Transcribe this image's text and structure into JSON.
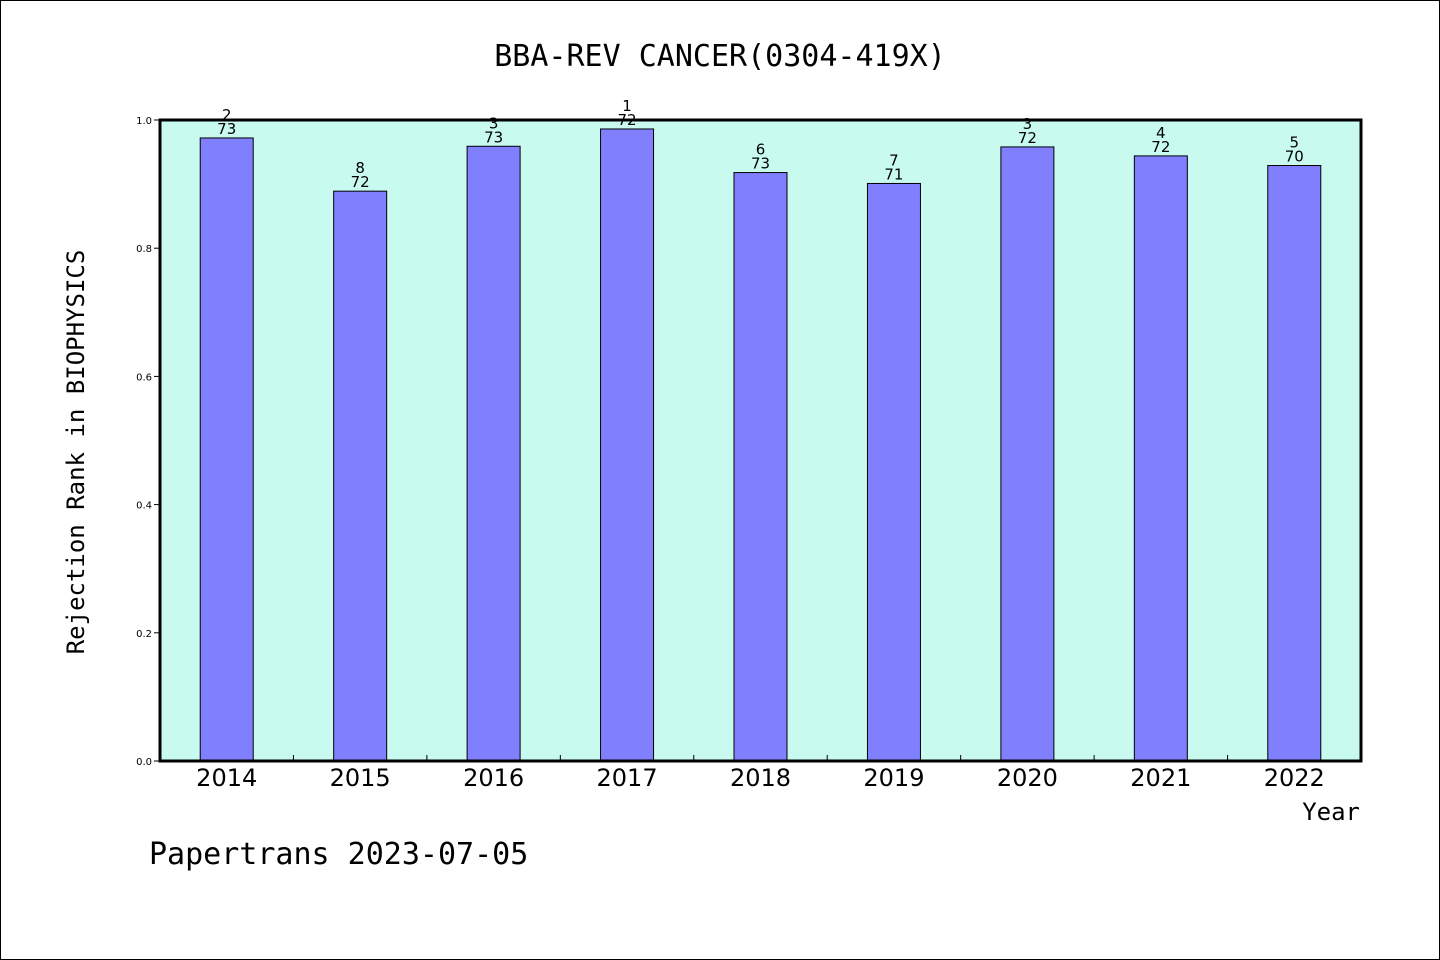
{
  "chart_data": {
    "type": "bar",
    "title": "BBA-REV CANCER(0304-419X)",
    "xlabel": "Year",
    "ylabel": "Rejection Rank in BIOPHYSICS",
    "categories": [
      "2014",
      "2015",
      "2016",
      "2017",
      "2018",
      "2019",
      "2020",
      "2021",
      "2022"
    ],
    "values": [
      0.972,
      0.889,
      0.959,
      0.986,
      0.918,
      0.901,
      0.958,
      0.944,
      0.929
    ],
    "rank_labels": [
      "2",
      "8",
      "3",
      "1",
      "6",
      "7",
      "3",
      "4",
      "5"
    ],
    "total_labels": [
      "73",
      "72",
      "73",
      "72",
      "73",
      "71",
      "72",
      "72",
      "70"
    ],
    "ylim": [
      0,
      1.0
    ],
    "yticks": [
      "0.0",
      "0.2",
      "0.4",
      "0.6",
      "0.8",
      "1.0"
    ],
    "grid": false,
    "colors": {
      "bar": "#8080ff",
      "plot_bg": "#c8faf0",
      "bar_edge": "#000000"
    }
  },
  "footer": "Papertrans 2023-07-05"
}
